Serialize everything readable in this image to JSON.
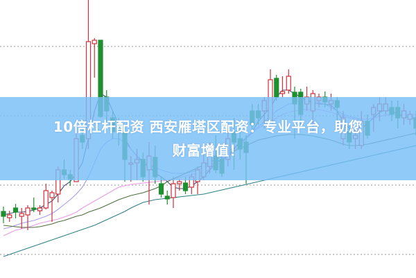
{
  "banner": {
    "line1": "10倍杠杆配资 西安雁塔区配资：专业平台，助您",
    "line2": "财富增值！"
  },
  "chart_data": {
    "type": "candlestick",
    "title": "",
    "xlabel": "",
    "ylabel": "",
    "ylim": [
      0,
      40
    ],
    "grid": {
      "horizontal": true,
      "style": "dotted",
      "levels": [
        3.3,
        13.3,
        23.3,
        33.3
      ]
    },
    "colors": {
      "up": "#d0303a",
      "down": "#1f8f2f",
      "grid": "#aaaaaa",
      "banner": "#78bef8"
    },
    "candles": [
      [
        9.5,
        10.2,
        7.8,
        8.8
      ],
      [
        8.6,
        9.6,
        8.0,
        9.0
      ],
      [
        10.0,
        10.6,
        8.5,
        9.4
      ],
      [
        8.8,
        10.0,
        7.0,
        9.2
      ],
      [
        9.0,
        10.4,
        6.8,
        10.0
      ],
      [
        10.0,
        11.5,
        9.4,
        9.8
      ],
      [
        9.6,
        10.4,
        9.0,
        10.0
      ],
      [
        10.0,
        13.5,
        9.8,
        12.5
      ],
      [
        11.5,
        12.5,
        8.0,
        12.2
      ],
      [
        12.0,
        16.0,
        10.8,
        15.5
      ],
      [
        15.5,
        17.0,
        14.2,
        14.8
      ],
      [
        14.8,
        15.5,
        13.2,
        14.2
      ],
      [
        13.8,
        21.0,
        13.8,
        20.0
      ],
      [
        20.5,
        21.5,
        18.5,
        19.5
      ],
      [
        20.0,
        40.0,
        18.5,
        34.0
      ],
      [
        33.7,
        34.5,
        28.8,
        34.2
      ],
      [
        34.2,
        34.2,
        23.0,
        23.2
      ],
      [
        26.0,
        27.0,
        22.5,
        24.0
      ],
      [
        23.0,
        24.0,
        20.0,
        21.0
      ],
      [
        22.0,
        23.0,
        19.0,
        21.0
      ],
      [
        21.0,
        22.0,
        13.8,
        17.0
      ],
      [
        16.3,
        17.5,
        13.8,
        16.5
      ],
      [
        16.5,
        18.5,
        14.0,
        17.0
      ],
      [
        17.0,
        18.0,
        13.8,
        14.5
      ],
      [
        15.5,
        19.5,
        10.5,
        17.5
      ],
      [
        17.3,
        19.0,
        13.5,
        14.5
      ],
      [
        13.5,
        14.5,
        11.5,
        12.0
      ],
      [
        11.7,
        12.5,
        10.5,
        11.3
      ],
      [
        11.5,
        14.5,
        10.0,
        13.5
      ],
      [
        13.5,
        14.2,
        12.5,
        13.8
      ],
      [
        13.6,
        14.5,
        12.0,
        12.5
      ],
      [
        13.0,
        15.0,
        12.0,
        14.5
      ],
      [
        13.8,
        16.0,
        12.0,
        15.5
      ],
      [
        14.5,
        18.5,
        14.0,
        16.5
      ],
      [
        16.0,
        19.5,
        15.0,
        17.5
      ],
      [
        17.5,
        20.5,
        15.0,
        15.5
      ],
      [
        17.0,
        19.0,
        14.5,
        15.0
      ],
      [
        17.0,
        21.5,
        16.0,
        20.0
      ],
      [
        21.0,
        23.0,
        15.5,
        19.5
      ],
      [
        20.0,
        22.0,
        17.0,
        18.5
      ],
      [
        19.5,
        20.5,
        13.5,
        18.0
      ],
      [
        24.0,
        25.0,
        21.0,
        22.0
      ],
      [
        24.0,
        25.0,
        22.0,
        23.0
      ],
      [
        24.0,
        26.0,
        21.5,
        25.5
      ],
      [
        22.0,
        30.0,
        21.5,
        28.5
      ],
      [
        28.7,
        29.2,
        25.5,
        26.0
      ],
      [
        26.5,
        29.0,
        26.0,
        26.8
      ],
      [
        27.0,
        30.0,
        26.5,
        29.0
      ],
      [
        26.7,
        27.5,
        20.0,
        25.0
      ],
      [
        26.7,
        27.2,
        22.0,
        23.5
      ],
      [
        25.0,
        27.5,
        24.0,
        26.0
      ],
      [
        24.0,
        27.0,
        21.0,
        26.5
      ],
      [
        25.5,
        26.5,
        24.5,
        26.0
      ],
      [
        26.0,
        26.8,
        24.5,
        25.3
      ],
      [
        25.0,
        26.5,
        24.0,
        25.5
      ],
      [
        25.5,
        26.0,
        22.5,
        24.5
      ],
      [
        20.0,
        24.0,
        19.0,
        23.0
      ],
      [
        21.0,
        22.0,
        18.5,
        19.5
      ],
      [
        20.0,
        21.5,
        18.5,
        20.5
      ],
      [
        19.0,
        24.0,
        18.5,
        22.5
      ],
      [
        22.5,
        23.5,
        20.0,
        20.5
      ],
      [
        23.5,
        25.0,
        21.0,
        24.5
      ],
      [
        24.0,
        26.0,
        22.5,
        25.0
      ],
      [
        24.0,
        26.0,
        23.5,
        25.0
      ],
      [
        24.5,
        25.5,
        22.5,
        23.5
      ],
      [
        24.5,
        25.5,
        21.5,
        23.0
      ],
      [
        23.0,
        25.0,
        22.0,
        24.0
      ],
      [
        22.8,
        24.0,
        22.0,
        23.5
      ],
      [
        23.0,
        24.0,
        20.5,
        21.5
      ]
    ],
    "candle_fields": [
      "open",
      "high",
      "low",
      "close"
    ],
    "moving_averages": [
      {
        "color": "#3f4f72",
        "values": [
          9.0,
          9.2,
          9.4,
          9.4,
          9.5,
          9.7,
          10.0,
          10.5,
          11.0,
          12.0,
          13.2,
          13.8,
          15.0,
          16.5,
          20.0,
          24.0,
          26.5,
          26.0,
          24.0,
          22.0,
          20.0,
          18.5,
          17.5,
          16.5,
          16.0,
          15.0,
          14.5,
          13.8,
          13.0,
          12.8,
          12.8,
          13.2,
          13.8,
          14.5,
          15.5,
          16.5,
          17.0,
          17.5,
          18.5,
          19.5,
          20.0,
          21.0,
          22.5,
          23.5,
          24.5,
          26.0,
          27.0,
          27.0,
          26.5,
          26.0,
          25.5,
          25.2,
          25.0,
          25.0,
          24.8,
          24.0,
          22.5,
          21.5,
          21.0,
          21.5,
          22.2,
          23.0,
          23.8,
          24.2,
          24.0,
          23.5,
          23.2,
          23.0,
          22.8
        ]
      },
      {
        "color": "#a49cf0",
        "values": [
          7.0,
          7.2,
          7.5,
          7.8,
          8.0,
          8.2,
          8.5,
          8.8,
          9.2,
          9.8,
          10.5,
          11.2,
          12.0,
          13.0,
          14.5,
          16.5,
          18.5,
          19.5,
          20.0,
          20.0,
          19.5,
          18.5,
          17.5,
          16.8,
          16.2,
          15.8,
          15.5,
          15.2,
          15.0,
          15.0,
          15.0,
          15.2,
          15.5,
          15.8,
          16.2,
          16.5,
          17.2,
          18.0,
          18.8,
          19.5,
          20.2,
          21.0,
          21.7,
          22.5,
          23.2,
          24.0,
          24.5,
          25.0,
          25.2,
          25.5,
          25.5,
          25.4,
          25.2,
          25.0,
          24.5,
          24.0,
          23.5,
          23.2,
          23.0,
          22.8,
          22.8,
          23.0,
          23.2,
          23.4,
          23.5,
          23.5,
          23.4,
          23.2,
          23.0
        ]
      },
      {
        "color": "#e79ae6",
        "values": [
          6.0,
          6.4,
          6.8,
          7.0,
          7.2,
          7.5,
          7.8,
          8.0,
          8.2,
          8.4,
          8.7,
          9.0,
          9.4,
          10.0,
          10.5,
          11.0,
          11.5,
          12.0,
          12.5,
          13.0,
          13.2,
          13.4,
          13.5,
          13.6,
          13.7,
          13.8,
          13.9,
          14.0,
          14.2,
          14.4,
          14.6,
          14.8,
          15.0,
          15.2,
          15.5,
          16.0,
          16.7,
          17.4,
          18.2,
          19.0,
          20.0,
          20.8,
          21.5,
          22.0,
          22.5,
          23.0,
          23.5,
          23.8,
          24.0,
          24.2,
          24.2,
          24.2,
          24.2,
          24.0,
          23.8,
          23.5,
          23.2,
          23.0,
          22.8,
          22.8,
          22.8,
          23.0,
          23.2,
          23.4,
          23.5,
          23.5,
          23.5,
          23.5,
          23.5
        ]
      },
      {
        "color": "#4d6e3e",
        "values": [
          7.5,
          7.4,
          7.3,
          7.2,
          7.2,
          7.2,
          7.3,
          7.5,
          7.7,
          8.0,
          8.2,
          8.5,
          8.8,
          9.0,
          9.4,
          9.7,
          10.0,
          10.4,
          10.8,
          11.2,
          11.5,
          11.8,
          12.0,
          12.2,
          12.5,
          12.8,
          13.2,
          13.8,
          14.2,
          14.6,
          15.0,
          15.4,
          15.8,
          16.2,
          16.6,
          17.0,
          17.4,
          17.8,
          18.2,
          18.6,
          19.0,
          19.4,
          19.8,
          20.0,
          20.2,
          20.4,
          20.5,
          20.6,
          20.6,
          20.6,
          20.5,
          20.4,
          20.2,
          20.0,
          19.8,
          19.5,
          19.2,
          19.0,
          19.0,
          19.1,
          19.2,
          19.4,
          19.6,
          19.8,
          20.0,
          20.2,
          20.4,
          20.6,
          20.8
        ]
      },
      {
        "color": "#2f7f86",
        "values": [
          3.0,
          3.3,
          3.6,
          3.9,
          4.2,
          4.5,
          4.8,
          5.1,
          5.4,
          5.7,
          6.0,
          6.3,
          6.6,
          6.9,
          7.2,
          7.5,
          7.9,
          8.3,
          8.7,
          9.1,
          9.5,
          10.0,
          10.4,
          10.8,
          11.0,
          11.2,
          11.3,
          11.4,
          11.5,
          11.6,
          11.7,
          11.8,
          11.9,
          12.0,
          12.2,
          12.4,
          12.6,
          12.8,
          13.0,
          13.2,
          13.4,
          13.6,
          13.8,
          14.0,
          14.2,
          14.4,
          14.6,
          14.8,
          15.0,
          15.2,
          15.4,
          15.6,
          15.8,
          16.0,
          16.2,
          16.4,
          16.6,
          16.8,
          17.0,
          17.2,
          17.4,
          17.6,
          17.8,
          18.0,
          18.2,
          18.4,
          18.6,
          18.8,
          19.0
        ]
      }
    ]
  }
}
